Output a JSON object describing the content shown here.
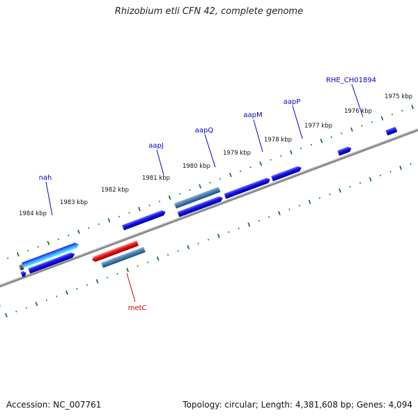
{
  "title": "Rhizobium etli CFN 42, complete genome",
  "footer": {
    "accession": "Accession: NC_007761",
    "summary": "Topology: circular; Length: 4,381,608 bp; Genes: 4,094"
  },
  "ticks": [
    {
      "kbp": "1984 kbp"
    },
    {
      "kbp": "1983 kbp"
    },
    {
      "kbp": "1982 kbp"
    },
    {
      "kbp": "1981 kbp"
    },
    {
      "kbp": "1980 kbp"
    },
    {
      "kbp": "1979 kbp"
    },
    {
      "kbp": "1978 kbp"
    },
    {
      "kbp": "1977 kbp"
    },
    {
      "kbp": "1976 kbp"
    },
    {
      "kbp": "1975 kbp"
    }
  ],
  "genes": [
    {
      "name": "nah",
      "color": "#0000cc"
    },
    {
      "name": "aapJ",
      "color": "#0000cc"
    },
    {
      "name": "aapQ",
      "color": "#0000cc"
    },
    {
      "name": "aapM",
      "color": "#0000cc"
    },
    {
      "name": "aapP",
      "color": "#0000cc"
    },
    {
      "name": "RHE_CH01894",
      "color": "#0000cc"
    },
    {
      "name": "metC",
      "color": "#cc0000"
    }
  ],
  "colors": {
    "forward_gene": "#1010ee",
    "reverse_gene": "#ee1010",
    "rna_gene": "#4a7fb0",
    "backbone": "#888888",
    "tick": "#1a7a1a"
  }
}
